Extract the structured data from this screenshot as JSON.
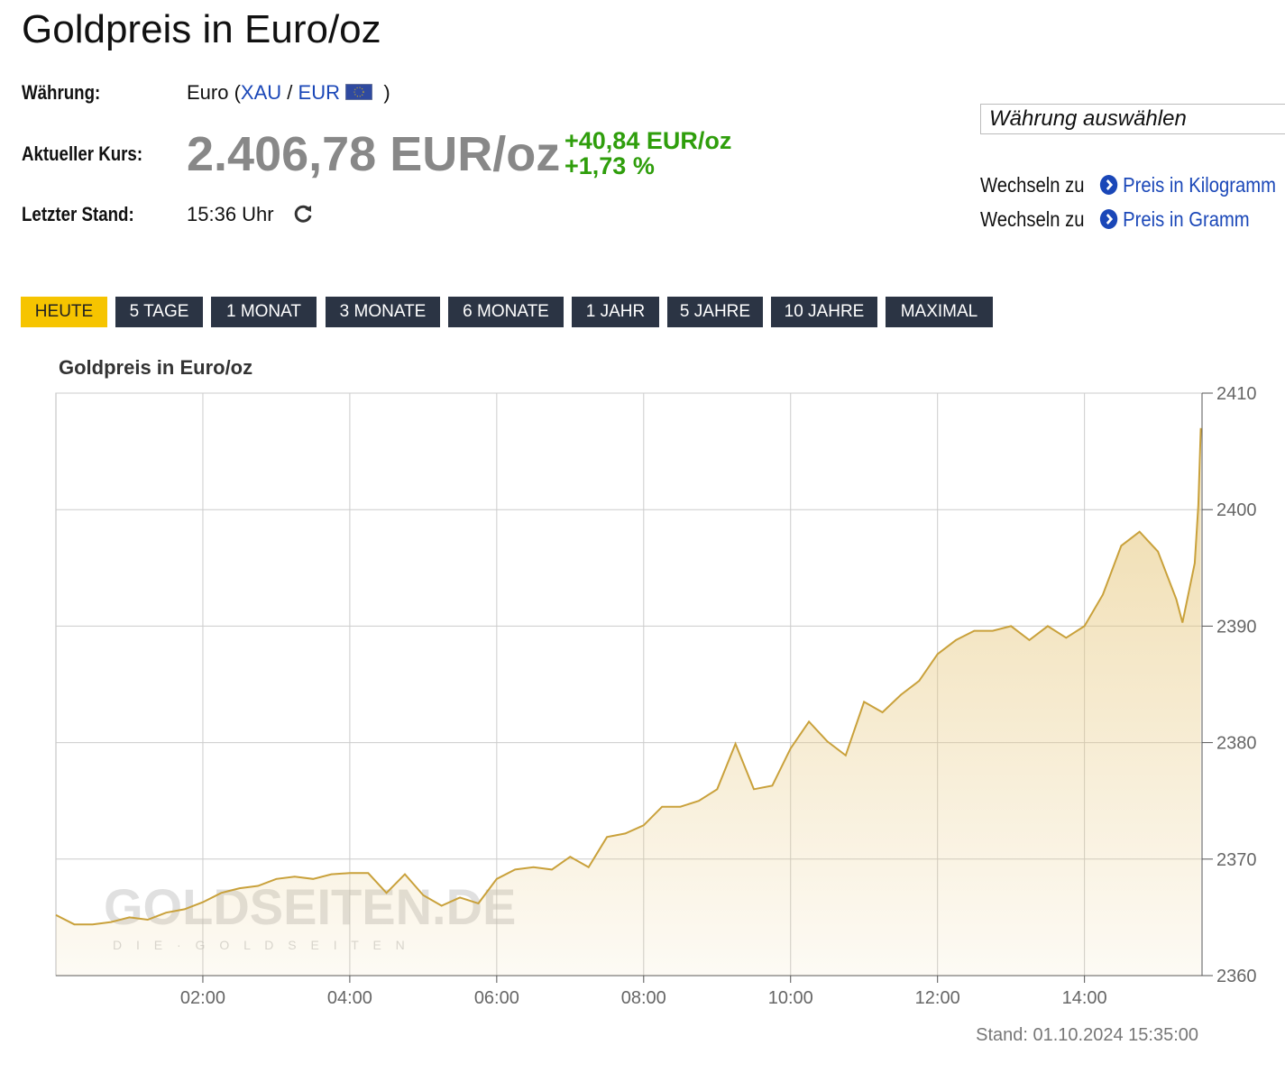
{
  "header": {
    "title": "Goldpreis in Euro/oz",
    "currency_label": "Währung:",
    "currency_name": "Euro (",
    "currency_base": "XAU",
    "currency_sep": "/",
    "currency_quote": "EUR",
    "currency_close": ")",
    "price_label": "Aktueller Kurs:",
    "price": "2.406,78 EUR/oz",
    "change_abs": "+40,84 EUR/oz",
    "change_pct": "+1,73 %",
    "time_label": "Letzter Stand:",
    "time": "15:36 Uhr"
  },
  "sidebar": {
    "select": "Währung auswählen",
    "links": [
      {
        "prefix": "Wechseln zu",
        "text": "Preis in Kilogramm"
      },
      {
        "prefix": "Wechseln zu",
        "text": "Preis in Gramm"
      }
    ]
  },
  "buttons": {
    "items": [
      "HEUTE",
      "5 TAGE",
      "1 MONAT",
      "3 MONATE",
      "6 MONATE",
      "1 JAHR",
      "5 JAHRE",
      "10 JAHRE",
      "MAXIMAL"
    ],
    "active": 0
  },
  "chart_data": {
    "type": "line",
    "title": "Goldpreis in Euro/oz",
    "color": "#c9a13b",
    "watermark": "GOLDSEITEN.DE",
    "watermark_sub": "D I E · G O L D S E I T E N",
    "footer": "Stand: 01.10.2024 15:35:00",
    "x": [
      "00:00",
      "00:15",
      "00:30",
      "00:45",
      "01:00",
      "01:15",
      "01:30",
      "01:45",
      "02:00",
      "02:15",
      "02:30",
      "02:45",
      "03:00",
      "03:15",
      "03:30",
      "03:45",
      "04:00",
      "04:15",
      "04:30",
      "04:45",
      "05:00",
      "05:15",
      "05:30",
      "05:45",
      "06:00",
      "06:15",
      "06:30",
      "06:45",
      "07:00",
      "07:15",
      "07:30",
      "07:45",
      "08:00",
      "08:15",
      "08:30",
      "08:45",
      "09:00",
      "09:15",
      "09:30",
      "09:45",
      "10:00",
      "10:15",
      "10:30",
      "10:45",
      "11:00",
      "11:15",
      "11:30",
      "11:45",
      "12:00",
      "12:15",
      "12:30",
      "12:45",
      "13:00",
      "13:15",
      "13:30",
      "13:45",
      "14:00",
      "14:15",
      "14:30",
      "14:45",
      "15:00",
      "15:15",
      "15:20",
      "15:30",
      "15:33",
      "15:35"
    ],
    "values": [
      2365.2,
      2364.4,
      2364.4,
      2364.6,
      2365.0,
      2364.8,
      2365.4,
      2365.7,
      2366.3,
      2367.1,
      2367.5,
      2367.7,
      2368.3,
      2368.5,
      2368.3,
      2368.7,
      2368.8,
      2368.8,
      2367.1,
      2368.7,
      2366.9,
      2366.0,
      2366.7,
      2366.2,
      2368.3,
      2369.1,
      2369.3,
      2369.1,
      2370.2,
      2369.3,
      2371.9,
      2372.2,
      2372.9,
      2374.5,
      2374.5,
      2375.0,
      2376.0,
      2379.9,
      2376.0,
      2376.3,
      2379.5,
      2381.8,
      2380.1,
      2378.9,
      2383.5,
      2382.6,
      2384.1,
      2385.3,
      2387.6,
      2388.8,
      2389.6,
      2389.6,
      2390.0,
      2388.8,
      2390.0,
      2389.0,
      2390.0,
      2392.7,
      2396.9,
      2398.1,
      2396.4,
      2392.3,
      2390.3,
      2395.4,
      2400.4,
      2407.0
    ],
    "xlim": [
      "00:00",
      "15:36"
    ],
    "xticks": [
      "02:00",
      "04:00",
      "06:00",
      "08:00",
      "10:00",
      "12:00",
      "14:00"
    ],
    "ylim": [
      2360,
      2410
    ],
    "yticks": [
      2360,
      2370,
      2380,
      2390,
      2400,
      2410
    ],
    "grid": true
  }
}
